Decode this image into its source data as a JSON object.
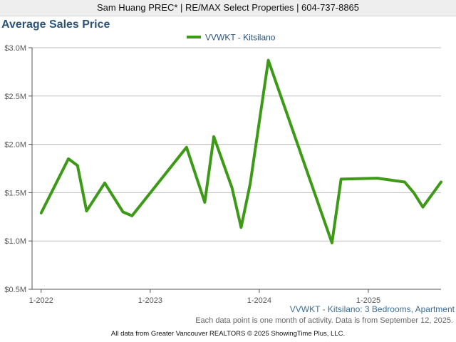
{
  "header": {
    "agent": "Sam Huang PREC* | RE/MAX Select Properties | 604-737-8865"
  },
  "colors": {
    "series": "#3c9a17",
    "title": "#2d5377",
    "grid": "#bdbdbd"
  },
  "chart_data": {
    "type": "line",
    "title": "Average Sales Price",
    "legend_position": "top-center",
    "grid": true,
    "xlabel": "",
    "ylabel": "",
    "ylim": [
      500000,
      3000000
    ],
    "xlim": [
      "2021-12",
      "2025-09"
    ],
    "yticks": [
      500000,
      1000000,
      1500000,
      2000000,
      2500000,
      3000000
    ],
    "ytick_labels": [
      "$0.5M",
      "$1.0M",
      "$1.5M",
      "$2.0M",
      "$2.5M",
      "$3.0M"
    ],
    "xticks": [
      "2022-01",
      "2023-01",
      "2024-01",
      "2025-01"
    ],
    "xtick_labels": [
      "1-2022",
      "1-2023",
      "1-2024",
      "1-2025"
    ],
    "series": [
      {
        "name": "VVWKT - Kitsilano",
        "points": [
          {
            "x": "2022-01",
            "y": 1290000
          },
          {
            "x": "2022-04",
            "y": 1850000
          },
          {
            "x": "2022-05",
            "y": 1780000
          },
          {
            "x": "2022-06",
            "y": 1310000
          },
          {
            "x": "2022-08",
            "y": 1600000
          },
          {
            "x": "2022-10",
            "y": 1300000
          },
          {
            "x": "2022-11",
            "y": 1260000
          },
          {
            "x": "2023-05",
            "y": 1970000
          },
          {
            "x": "2023-07",
            "y": 1400000
          },
          {
            "x": "2023-08",
            "y": 2080000
          },
          {
            "x": "2023-10",
            "y": 1550000
          },
          {
            "x": "2023-11",
            "y": 1140000
          },
          {
            "x": "2023-12",
            "y": 1590000
          },
          {
            "x": "2024-02",
            "y": 2870000
          },
          {
            "x": "2024-09",
            "y": 980000
          },
          {
            "x": "2024-10",
            "y": 1640000
          },
          {
            "x": "2025-02",
            "y": 1650000
          },
          {
            "x": "2025-05",
            "y": 1610000
          },
          {
            "x": "2025-06",
            "y": 1500000
          },
          {
            "x": "2025-07",
            "y": 1350000
          },
          {
            "x": "2025-09",
            "y": 1610000
          }
        ]
      }
    ]
  },
  "footer": {
    "series_note": "VVWKT - Kitsilano: 3 Bedrooms, Apartment",
    "activity_note": "Each data point is one month of activity. Data is from September 12, 2025.",
    "credit": "All data from Greater Vancouver REALTORS © 2025 ShowingTime Plus, LLC."
  }
}
